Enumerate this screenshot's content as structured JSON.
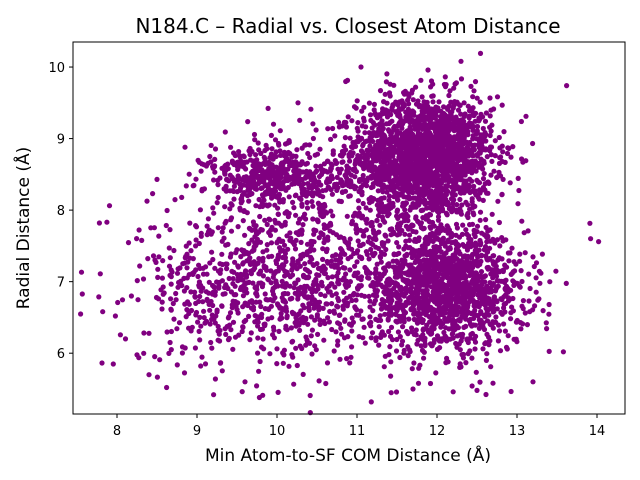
{
  "chart_data": {
    "type": "scatter",
    "title": "N184.C – Radial vs. Closest Atom Distance",
    "xlabel": "Min Atom-to-SF COM Distance (Å)",
    "ylabel": "Radial Distance (Å)",
    "xlim": [
      7.45,
      14.35
    ],
    "ylim": [
      5.15,
      10.35
    ],
    "xticks": [
      8,
      9,
      10,
      11,
      12,
      13,
      14
    ],
    "yticks": [
      6,
      7,
      8,
      9,
      10
    ],
    "grid": false,
    "point_color": "#800080",
    "clusters": [
      {
        "center_x": 11.85,
        "center_y": 8.75,
        "spread_x": 0.42,
        "spread_y": 0.42,
        "count": 2000
      },
      {
        "center_x": 12.1,
        "center_y": 6.9,
        "spread_x": 0.5,
        "spread_y": 0.42,
        "count": 1500
      },
      {
        "center_x": 10.0,
        "center_y": 8.45,
        "spread_x": 0.45,
        "spread_y": 0.22,
        "count": 500
      },
      {
        "center_x": 9.9,
        "center_y": 6.95,
        "spread_x": 0.8,
        "spread_y": 0.55,
        "count": 900
      },
      {
        "center_x": 10.9,
        "center_y": 8.0,
        "spread_x": 0.7,
        "spread_y": 0.8,
        "count": 300
      }
    ],
    "outliers": [
      [
        7.78,
        7.82
      ],
      [
        7.98,
        6.52
      ],
      [
        8.18,
        6.8
      ],
      [
        8.5,
        8.43
      ],
      [
        8.62,
        5.52
      ],
      [
        9.78,
        5.38
      ],
      [
        12.3,
        10.08
      ],
      [
        11.05,
        10.0
      ],
      [
        13.62,
        9.74
      ],
      [
        13.92,
        7.6
      ],
      [
        14.02,
        7.56
      ],
      [
        13.58,
        6.02
      ],
      [
        13.2,
        5.6
      ],
      [
        12.7,
        5.58
      ],
      [
        12.5,
        5.48
      ],
      [
        11.7,
        5.5
      ],
      [
        11.42,
        5.68
      ],
      [
        8.4,
        5.7
      ],
      [
        9.6,
        5.6
      ],
      [
        8.85,
        8.88
      ]
    ]
  }
}
